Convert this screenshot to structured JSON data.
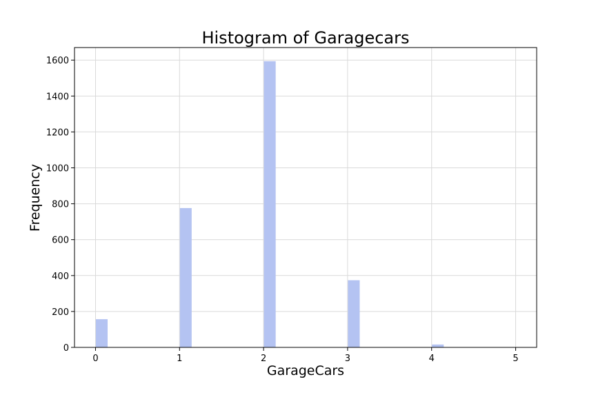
{
  "chart_data": {
    "type": "bar",
    "title": "Histogram of Garagecars",
    "xlabel": "GarageCars",
    "ylabel": "Frequency",
    "xlim": [
      -0.25,
      5.25
    ],
    "ylim": [
      0,
      1670
    ],
    "xticks": [
      "0",
      "1",
      "2",
      "3",
      "4",
      "5"
    ],
    "yticks": [
      "0",
      "200",
      "400",
      "600",
      "800",
      "1000",
      "1200",
      "1400",
      "1600"
    ],
    "grid": true,
    "bar_color": "#b4c3f2",
    "bins": [
      {
        "x": 0,
        "value": 157
      },
      {
        "x": 1,
        "value": 776
      },
      {
        "x": 2,
        "value": 1594
      },
      {
        "x": 3,
        "value": 374
      },
      {
        "x": 4,
        "value": 16
      },
      {
        "x": 5,
        "value": 1
      }
    ]
  }
}
